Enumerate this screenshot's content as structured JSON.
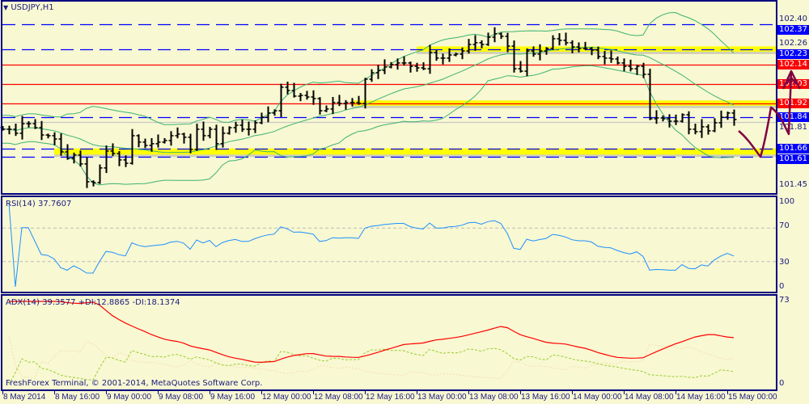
{
  "main": {
    "symbol_title": "USDJPY,H1",
    "price_scale": {
      "top_label": "102.40",
      "bottom_label": "101.45",
      "max": 102.4,
      "min": 101.45
    },
    "price_labels": [
      {
        "text": "102.40",
        "boxed": false,
        "color": ""
      },
      {
        "text": "102.37",
        "boxed": true,
        "color": "#0000ff"
      },
      {
        "text": "102.26",
        "boxed": false,
        "color": ""
      },
      {
        "text": "102.23",
        "boxed": true,
        "color": "#0000ff"
      },
      {
        "text": "102.14",
        "boxed": true,
        "color": "#ff0000"
      },
      {
        "text": "102.03",
        "boxed": true,
        "color": "#ff0000"
      },
      {
        "text": "101.92",
        "boxed": true,
        "color": "#ff0000"
      },
      {
        "text": "101.84",
        "boxed": true,
        "color": "#0000ff"
      },
      {
        "text": "101.81",
        "boxed": false,
        "color": ""
      },
      {
        "text": "101.66",
        "boxed": true,
        "color": "#0000ff"
      },
      {
        "text": "101.61",
        "boxed": true,
        "color": "#0000ff"
      },
      {
        "text": "101.45",
        "boxed": false,
        "color": ""
      }
    ],
    "levels": [
      {
        "price": 102.37,
        "style": "dashed",
        "color": "#0000ff"
      },
      {
        "price": 102.23,
        "style": "dashed",
        "color": "#0000ff"
      },
      {
        "price": 102.14,
        "style": "solid",
        "color": "#ff0000"
      },
      {
        "price": 102.03,
        "style": "solid",
        "color": "#ff0000"
      },
      {
        "price": 101.92,
        "style": "solid",
        "color": "#ff0000"
      },
      {
        "price": 101.84,
        "style": "dashed",
        "color": "#0000ff"
      },
      {
        "price": 101.81,
        "style": "solid",
        "color": "#c8c8c8"
      },
      {
        "price": 101.66,
        "style": "dashed",
        "color": "#0000ff"
      },
      {
        "price": 101.61,
        "style": "dashed",
        "color": "#0000ff"
      }
    ],
    "zones": [
      {
        "from": 102.215,
        "to": 102.245,
        "start": "13 May 00:00",
        "color": "#ffff00"
      },
      {
        "from": 101.905,
        "to": 101.935,
        "start": "12 May 14:00",
        "color": "#ffff00"
      },
      {
        "from": 101.625,
        "to": 101.66,
        "start": "8 May 16:00",
        "color": "#ffff00"
      }
    ],
    "colors": {
      "background": "#f8f8d2",
      "bars": "#000000",
      "bollinger": "#3cb371",
      "axis": "#000080",
      "arrow": "#800040"
    }
  },
  "chart_data": {
    "type": "ohlc-bar",
    "timeframe": "H1",
    "first_bar": "8 May 2014 08:00",
    "closes": [
      101.77,
      101.77,
      101.747,
      101.802,
      101.802,
      101.779,
      101.737,
      101.733,
      101.714,
      101.64,
      101.603,
      101.622,
      101.571,
      101.469,
      101.464,
      101.548,
      101.645,
      101.631,
      101.594,
      101.575,
      101.733,
      101.696,
      101.677,
      101.687,
      101.696,
      101.705,
      101.733,
      101.742,
      101.724,
      101.654,
      101.77,
      101.733,
      101.77,
      101.687,
      101.747,
      101.779,
      101.793,
      101.77,
      101.77,
      101.807,
      101.839,
      101.863,
      101.876,
      102.011,
      101.992,
      101.96,
      101.964,
      101.955,
      101.946,
      101.876,
      101.886,
      101.923,
      101.918,
      101.923,
      101.923,
      101.918,
      102.057,
      102.094,
      102.108,
      102.127,
      102.141,
      102.15,
      102.15,
      102.131,
      102.122,
      102.117,
      102.21,
      102.178,
      102.178,
      102.196,
      102.201,
      102.219,
      102.256,
      102.266,
      102.256,
      102.298,
      102.317,
      102.303,
      102.247,
      102.117,
      102.103,
      102.219,
      102.201,
      102.219,
      102.233,
      102.289,
      102.28,
      102.266,
      102.242,
      102.233,
      102.233,
      102.224,
      102.187,
      102.178,
      102.173,
      102.15,
      102.131,
      102.117,
      102.131,
      102.085,
      101.83,
      101.835,
      101.83,
      101.816,
      101.816,
      101.853,
      101.77,
      101.756,
      101.784,
      101.761,
      101.807,
      101.839,
      101.863,
      101.826
    ],
    "time_labels": [
      "8 May 2014",
      "8 May 16:00",
      "9 May 00:00",
      "9 May 08:00",
      "9 May 16:00",
      "12 May 00:00",
      "12 May 08:00",
      "12 May 16:00",
      "13 May 00:00",
      "13 May 08:00",
      "13 May 16:00",
      "14 May 00:00",
      "14 May 08:00",
      "14 May 16:00",
      "15 May 00:00"
    ],
    "indicators": {
      "bollinger": {
        "period": 20,
        "deviation": 2
      },
      "rsi": {
        "label": "RSI(14) 37.7607",
        "period": 14,
        "levels": [
          70,
          30
        ],
        "scale_labels": [
          "100",
          "70",
          "30",
          "0"
        ],
        "ylim": [
          0,
          100
        ],
        "color": "#1e90ff"
      },
      "adx": {
        "label": "ADX(14) 39.3577 +DI:12.8865 -DI:18.1374",
        "period": 14,
        "scale_labels": [
          "73",
          "0"
        ],
        "ylim": [
          0,
          73
        ],
        "colors": {
          "adx": "#ff0000",
          "plus_di": "#9acd32",
          "minus_di": "#f5deb3"
        }
      }
    }
  },
  "footer": {
    "copyright": "FreshForex Terminal, © 2001-2014, MetaQuotes Software Corp."
  }
}
